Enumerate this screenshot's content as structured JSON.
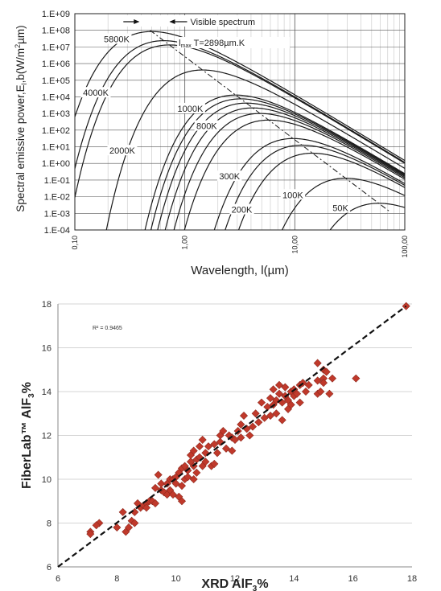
{
  "chart_data": [
    {
      "type": "line",
      "title": "",
      "xlabel": "Wavelength, l(µm)",
      "ylabel": "Spectral emissive power,E",
      "ylabel_sub": "l",
      "ylabel_units": ",b(W/m",
      "ylabel_units_sup": "2",
      "ylabel_units_tail": "µm)",
      "x_scale": "log",
      "y_scale": "log",
      "xlim": [
        0.1,
        100
      ],
      "ylim": [
        0.0001,
        1000000000
      ],
      "x_ticks": [
        0.1,
        1,
        10,
        100
      ],
      "x_tick_labels": [
        "0,10",
        "1,00",
        "10,00",
        "100,00"
      ],
      "y_ticks": [
        0.0001,
        0.001,
        0.01,
        0.1,
        1,
        10,
        100,
        1000,
        10000,
        100000,
        1000000,
        10000000,
        100000000,
        1000000000
      ],
      "y_tick_labels": [
        "1.E-04",
        "1.E-03",
        "1.E-02",
        "1.E-01",
        "1.E+00",
        "1.E+01",
        "1.E+02",
        "1.E+03",
        "1.E+04",
        "1.E+05",
        "1.E+06",
        "1.E+07",
        "1.E+08",
        "1.E+09"
      ],
      "grid": true,
      "visible_spectrum_label": "Visible spectrum",
      "visible_spectrum_um": [
        0.4,
        0.7
      ],
      "wien_label": {
        "main": "l",
        "sub": "max",
        "rest": " T=2898µm.K"
      },
      "wien_constant_um_K": 2898,
      "series": [
        {
          "name": "5800K",
          "temperature_K": 5800
        },
        {
          "name": "",
          "temperature_K": 4500
        },
        {
          "name": "4000K",
          "temperature_K": 4000
        },
        {
          "name": "2000K",
          "temperature_K": 2000
        },
        {
          "name": "1000K",
          "temperature_K": 1000
        },
        {
          "name": "",
          "temperature_K": 900
        },
        {
          "name": "800K",
          "temperature_K": 800
        },
        {
          "name": "",
          "temperature_K": 700
        },
        {
          "name": "",
          "temperature_K": 600
        },
        {
          "name": "",
          "temperature_K": 500
        },
        {
          "name": "300K",
          "temperature_K": 300
        },
        {
          "name": "",
          "temperature_K": 250
        },
        {
          "name": "200K",
          "temperature_K": 200
        },
        {
          "name": "100K",
          "temperature_K": 100
        },
        {
          "name": "50K",
          "temperature_K": 50
        }
      ]
    },
    {
      "type": "scatter",
      "title": "",
      "xlabel": "XRD AlF",
      "xlabel_sub": "3",
      "xlabel_tail": "%",
      "ylabel": "FiberLab™ AlF",
      "ylabel_sub": "3",
      "ylabel_tail": "%",
      "xlim": [
        6,
        18
      ],
      "ylim": [
        6,
        18
      ],
      "x_ticks": [
        6,
        8,
        10,
        12,
        14,
        16,
        18
      ],
      "y_ticks": [
        6,
        8,
        10,
        12,
        14,
        16,
        18
      ],
      "grid": true,
      "r2_label": "R² = 0.9465",
      "marker_color": "#c0392b",
      "trendline": {
        "style": "dashed",
        "from": [
          6,
          6
        ],
        "to": [
          17.8,
          17.9
        ]
      },
      "points": [
        [
          7.1,
          7.6
        ],
        [
          7.1,
          7.5
        ],
        [
          7.4,
          8.0
        ],
        [
          7.3,
          7.9
        ],
        [
          8.0,
          7.8
        ],
        [
          8.2,
          8.5
        ],
        [
          8.3,
          7.6
        ],
        [
          8.4,
          7.8
        ],
        [
          8.5,
          8.1
        ],
        [
          8.6,
          8.0
        ],
        [
          8.6,
          8.5
        ],
        [
          8.7,
          8.9
        ],
        [
          8.8,
          8.7
        ],
        [
          8.9,
          8.8
        ],
        [
          9.0,
          8.9
        ],
        [
          9.0,
          8.7
        ],
        [
          9.1,
          9.0
        ],
        [
          9.2,
          9.0
        ],
        [
          9.3,
          8.9
        ],
        [
          9.3,
          9.6
        ],
        [
          9.4,
          10.2
        ],
        [
          9.5,
          9.5
        ],
        [
          9.5,
          9.8
        ],
        [
          9.6,
          9.4
        ],
        [
          9.7,
          9.3
        ],
        [
          9.7,
          9.8
        ],
        [
          9.8,
          10.0
        ],
        [
          9.8,
          9.5
        ],
        [
          9.9,
          10.0
        ],
        [
          9.9,
          9.3
        ],
        [
          10.0,
          10.1
        ],
        [
          10.0,
          9.8
        ],
        [
          10.1,
          9.2
        ],
        [
          10.1,
          10.3
        ],
        [
          10.2,
          10.5
        ],
        [
          10.2,
          9.7
        ],
        [
          10.2,
          9.0
        ],
        [
          10.3,
          10.0
        ],
        [
          10.3,
          10.6
        ],
        [
          10.4,
          10.1
        ],
        [
          10.4,
          10.4
        ],
        [
          10.5,
          10.8
        ],
        [
          10.5,
          11.1
        ],
        [
          10.6,
          10.6
        ],
        [
          10.6,
          10.0
        ],
        [
          10.6,
          11.3
        ],
        [
          10.7,
          10.9
        ],
        [
          10.7,
          10.3
        ],
        [
          10.8,
          11.0
        ],
        [
          10.8,
          11.5
        ],
        [
          10.9,
          11.8
        ],
        [
          10.9,
          10.6
        ],
        [
          11.0,
          11.2
        ],
        [
          11.0,
          10.8
        ],
        [
          11.1,
          11.5
        ],
        [
          11.2,
          10.6
        ],
        [
          11.3,
          11.6
        ],
        [
          11.3,
          10.7
        ],
        [
          11.4,
          11.2
        ],
        [
          11.5,
          12.0
        ],
        [
          11.5,
          11.7
        ],
        [
          11.6,
          12.2
        ],
        [
          11.7,
          11.4
        ],
        [
          11.8,
          12.0
        ],
        [
          11.9,
          11.9
        ],
        [
          11.9,
          11.3
        ],
        [
          12.0,
          11.8
        ],
        [
          12.1,
          12.2
        ],
        [
          12.2,
          12.5
        ],
        [
          12.2,
          11.9
        ],
        [
          12.3,
          12.9
        ],
        [
          12.4,
          12.3
        ],
        [
          12.5,
          12.0
        ],
        [
          12.6,
          12.4
        ],
        [
          12.7,
          13.0
        ],
        [
          12.8,
          12.6
        ],
        [
          12.9,
          13.5
        ],
        [
          13.0,
          12.8
        ],
        [
          13.1,
          13.3
        ],
        [
          13.2,
          12.9
        ],
        [
          13.2,
          13.7
        ],
        [
          13.3,
          13.4
        ],
        [
          13.3,
          14.1
        ],
        [
          13.4,
          13.0
        ],
        [
          13.4,
          13.6
        ],
        [
          13.5,
          13.9
        ],
        [
          13.5,
          14.3
        ],
        [
          13.6,
          13.5
        ],
        [
          13.6,
          12.7
        ],
        [
          13.7,
          13.8
        ],
        [
          13.7,
          14.2
        ],
        [
          13.8,
          13.6
        ],
        [
          13.8,
          13.2
        ],
        [
          13.9,
          14.0
        ],
        [
          13.9,
          13.4
        ],
        [
          14.0,
          13.8
        ],
        [
          14.0,
          14.1
        ],
        [
          14.1,
          13.9
        ],
        [
          14.2,
          14.3
        ],
        [
          14.2,
          13.5
        ],
        [
          14.3,
          14.4
        ],
        [
          14.4,
          14.0
        ],
        [
          14.5,
          14.3
        ],
        [
          14.8,
          14.5
        ],
        [
          14.8,
          13.9
        ],
        [
          14.8,
          15.3
        ],
        [
          14.9,
          14.0
        ],
        [
          15.0,
          15.0
        ],
        [
          15.0,
          14.6
        ],
        [
          15.0,
          14.4
        ],
        [
          15.1,
          14.9
        ],
        [
          15.2,
          13.9
        ],
        [
          15.3,
          14.6
        ],
        [
          16.1,
          14.6
        ],
        [
          17.8,
          17.9
        ]
      ]
    }
  ]
}
